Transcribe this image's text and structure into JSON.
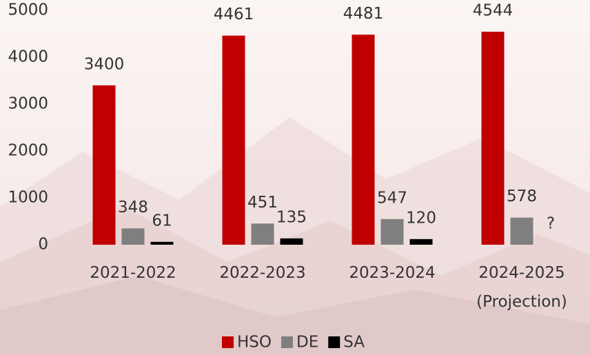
{
  "chart_data": {
    "type": "bar",
    "categories": [
      "2021-2022",
      "2022-2023",
      "2023-2024",
      "2024-2025\n(Projection)"
    ],
    "series": [
      {
        "name": "HSO",
        "color": "#c00000",
        "values": [
          3400,
          4461,
          4481,
          4544
        ]
      },
      {
        "name": "DE",
        "color": "#7f7f7f",
        "values": [
          348,
          451,
          547,
          578
        ]
      },
      {
        "name": "SA",
        "color": "#000000",
        "values": [
          61,
          135,
          120,
          null
        ],
        "value_labels": [
          "61",
          "135",
          "120",
          "?"
        ]
      }
    ],
    "ylim": [
      0,
      5000
    ],
    "yticks": [
      0,
      1000,
      2000,
      3000,
      4000,
      5000
    ],
    "grid": false,
    "legend": "bottom"
  }
}
